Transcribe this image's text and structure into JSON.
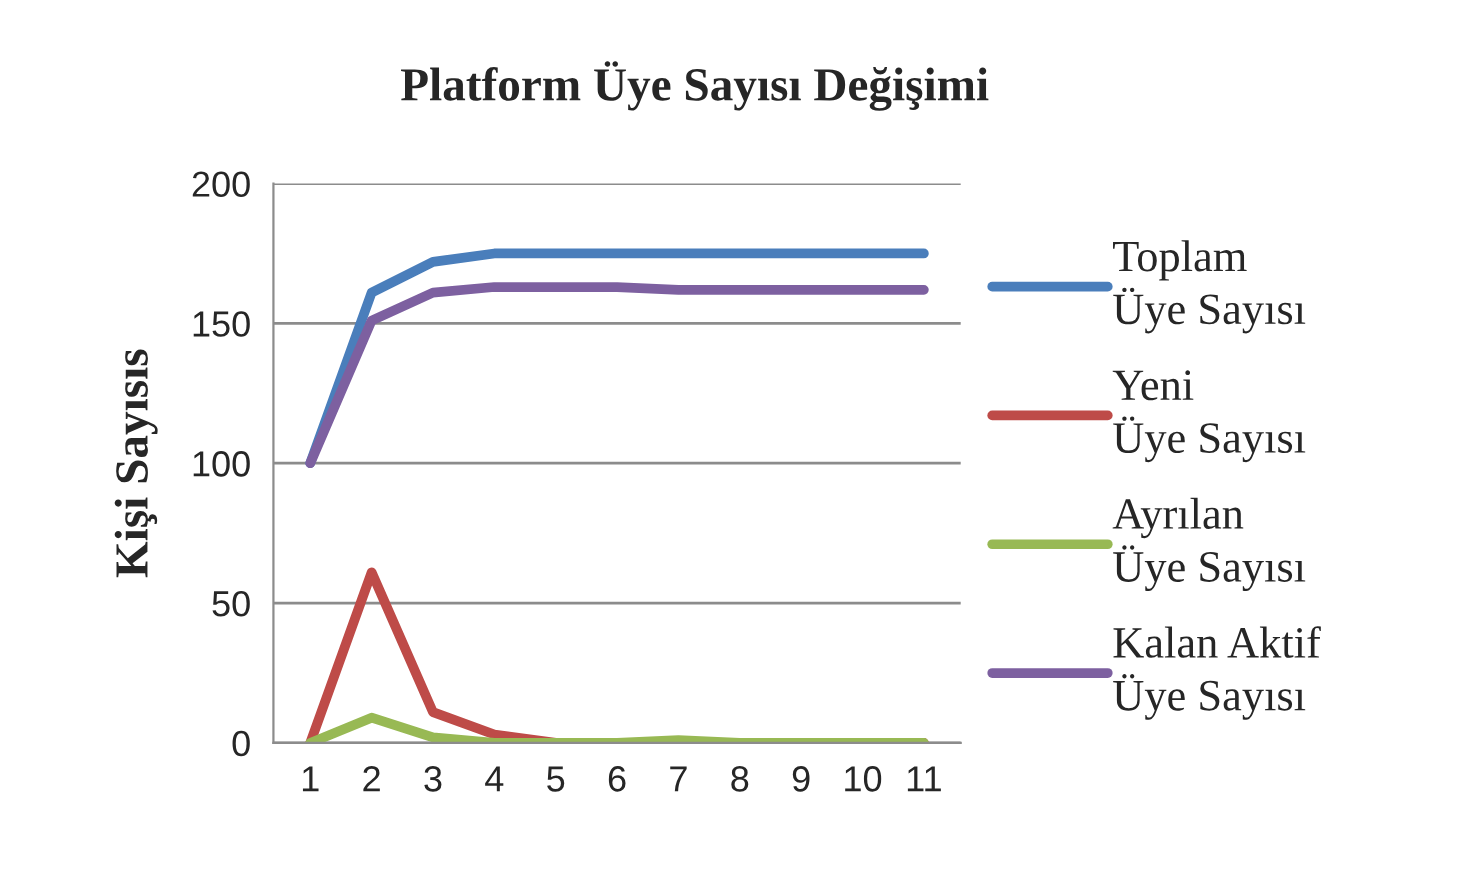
{
  "chart_data": {
    "type": "line",
    "title": "Platform Üye Sayısı Değişimi",
    "ylabel": "Kişi Sayısıs",
    "categories": [
      "1",
      "2",
      "3",
      "4",
      "5",
      "6",
      "7",
      "8",
      "9",
      "10",
      "11"
    ],
    "series": [
      {
        "name": "Toplam\nÜye Sayısı",
        "color": "#4a7ebb",
        "values": [
          100,
          161,
          172,
          175,
          175,
          175,
          175,
          175,
          175,
          175,
          175
        ]
      },
      {
        "name": "Yeni\nÜye Sayısı",
        "color": "#be4b48",
        "values": [
          0,
          61,
          11,
          3,
          0,
          0,
          0,
          0,
          0,
          0,
          0
        ]
      },
      {
        "name": "Ayrılan\nÜye Sayısı",
        "color": "#98b954",
        "values": [
          0,
          9,
          2,
          0,
          0,
          0,
          1,
          0,
          0,
          0,
          0
        ]
      },
      {
        "name": "Kalan Aktif\nÜye Sayısı",
        "color": "#7d60a0",
        "values": [
          100,
          151,
          161,
          163,
          163,
          163,
          162,
          162,
          162,
          162,
          162
        ]
      }
    ],
    "ylim": [
      0,
      200
    ],
    "yticks": [
      0,
      50,
      100,
      150,
      200
    ],
    "grid": "y",
    "legend": "right",
    "marker": "none",
    "line_style": "solid"
  }
}
